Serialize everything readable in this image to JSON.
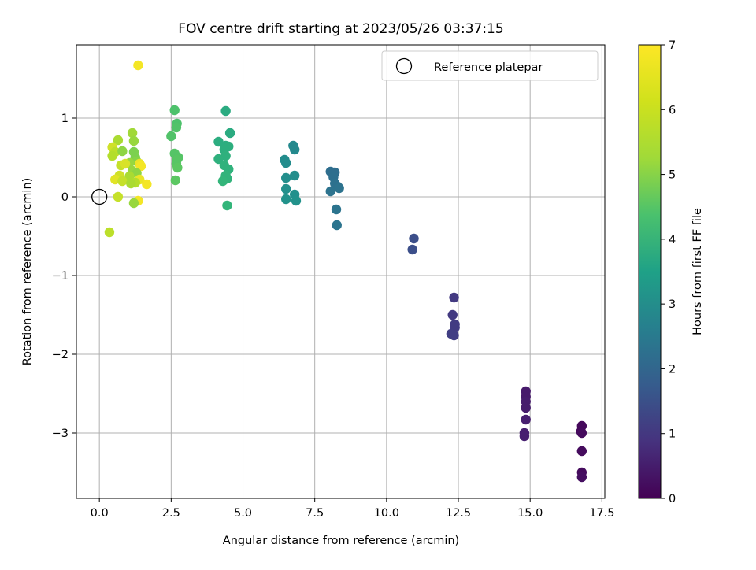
{
  "chart_data": {
    "type": "scatter",
    "title": "FOV centre drift starting at 2023/05/26 03:37:15",
    "xlabel": "Angular distance from reference (arcmin)",
    "ylabel": "Rotation from reference (arcmin)",
    "xlim": [
      -0.8,
      17.6
    ],
    "ylim": [
      -3.83,
      1.93
    ],
    "xticks": [
      0.0,
      2.5,
      5.0,
      7.5,
      10.0,
      12.5,
      15.0,
      17.5
    ],
    "xtick_labels": [
      "0.0",
      "2.5",
      "5.0",
      "7.5",
      "10.0",
      "12.5",
      "15.0",
      "17.5"
    ],
    "yticks": [
      -3,
      -2,
      -1,
      0,
      1
    ],
    "ytick_labels": [
      "−3",
      "−2",
      "−1",
      "0",
      "1"
    ],
    "grid": true,
    "legend": {
      "placement": "top-right",
      "entries": [
        "Reference platepar"
      ]
    },
    "reference_point": {
      "x": 0.0,
      "y": 0.0,
      "label": "Reference platepar"
    },
    "colorbar": {
      "label": "Hours from first FF file",
      "colormap": "viridis",
      "range": [
        0,
        7
      ],
      "ticks": [
        0,
        1,
        2,
        3,
        4,
        5,
        6,
        7
      ],
      "tick_labels": [
        "0",
        "1",
        "2",
        "3",
        "4",
        "5",
        "6",
        "7"
      ]
    },
    "points": [
      {
        "x": 16.8,
        "y": -2.91,
        "c": 0.15
      },
      {
        "x": 16.77,
        "y": -2.98,
        "c": 0.15
      },
      {
        "x": 16.8,
        "y": -3.0,
        "c": 0.2
      },
      {
        "x": 16.8,
        "y": -3.23,
        "c": 0.2
      },
      {
        "x": 16.8,
        "y": -3.5,
        "c": 0.2
      },
      {
        "x": 16.8,
        "y": -3.56,
        "c": 0.25
      },
      {
        "x": 14.85,
        "y": -2.47,
        "c": 0.5
      },
      {
        "x": 14.85,
        "y": -2.54,
        "c": 0.5
      },
      {
        "x": 14.85,
        "y": -2.6,
        "c": 0.55
      },
      {
        "x": 14.85,
        "y": -2.68,
        "c": 0.55
      },
      {
        "x": 14.85,
        "y": -2.83,
        "c": 0.6
      },
      {
        "x": 14.8,
        "y": -3.0,
        "c": 0.6
      },
      {
        "x": 14.8,
        "y": -3.04,
        "c": 0.6
      },
      {
        "x": 12.35,
        "y": -1.28,
        "c": 1.2
      },
      {
        "x": 12.3,
        "y": -1.5,
        "c": 1.2
      },
      {
        "x": 12.38,
        "y": -1.62,
        "c": 1.25
      },
      {
        "x": 12.38,
        "y": -1.66,
        "c": 1.25
      },
      {
        "x": 12.25,
        "y": -1.74,
        "c": 1.3
      },
      {
        "x": 12.35,
        "y": -1.76,
        "c": 1.3
      },
      {
        "x": 10.95,
        "y": -0.53,
        "c": 1.7
      },
      {
        "x": 10.9,
        "y": -0.67,
        "c": 1.7
      },
      {
        "x": 8.05,
        "y": 0.32,
        "c": 2.5
      },
      {
        "x": 8.2,
        "y": 0.31,
        "c": 2.5
      },
      {
        "x": 8.15,
        "y": 0.25,
        "c": 2.55
      },
      {
        "x": 8.2,
        "y": 0.17,
        "c": 2.6
      },
      {
        "x": 8.3,
        "y": 0.13,
        "c": 2.6
      },
      {
        "x": 8.35,
        "y": 0.11,
        "c": 2.65
      },
      {
        "x": 8.05,
        "y": 0.07,
        "c": 2.65
      },
      {
        "x": 8.25,
        "y": -0.16,
        "c": 2.7
      },
      {
        "x": 8.27,
        "y": -0.36,
        "c": 2.7
      },
      {
        "x": 6.75,
        "y": 0.65,
        "c": 3.3
      },
      {
        "x": 6.8,
        "y": 0.6,
        "c": 3.3
      },
      {
        "x": 6.45,
        "y": 0.47,
        "c": 3.4
      },
      {
        "x": 6.5,
        "y": 0.43,
        "c": 3.4
      },
      {
        "x": 6.8,
        "y": 0.27,
        "c": 3.45
      },
      {
        "x": 6.5,
        "y": 0.24,
        "c": 3.45
      },
      {
        "x": 6.5,
        "y": 0.1,
        "c": 3.5
      },
      {
        "x": 6.8,
        "y": 0.03,
        "c": 3.5
      },
      {
        "x": 6.5,
        "y": -0.03,
        "c": 3.55
      },
      {
        "x": 6.85,
        "y": -0.05,
        "c": 3.55
      },
      {
        "x": 4.4,
        "y": 1.09,
        "c": 4.3
      },
      {
        "x": 4.55,
        "y": 0.81,
        "c": 4.3
      },
      {
        "x": 4.15,
        "y": 0.7,
        "c": 4.35
      },
      {
        "x": 4.4,
        "y": 0.65,
        "c": 4.35
      },
      {
        "x": 4.5,
        "y": 0.64,
        "c": 4.4
      },
      {
        "x": 4.35,
        "y": 0.6,
        "c": 4.4
      },
      {
        "x": 4.4,
        "y": 0.52,
        "c": 4.45
      },
      {
        "x": 4.15,
        "y": 0.48,
        "c": 4.45
      },
      {
        "x": 4.35,
        "y": 0.4,
        "c": 4.5
      },
      {
        "x": 4.5,
        "y": 0.35,
        "c": 4.5
      },
      {
        "x": 4.4,
        "y": 0.27,
        "c": 4.55
      },
      {
        "x": 4.45,
        "y": 0.23,
        "c": 4.55
      },
      {
        "x": 4.3,
        "y": 0.2,
        "c": 4.6
      },
      {
        "x": 4.45,
        "y": -0.11,
        "c": 4.6
      },
      {
        "x": 2.62,
        "y": 1.1,
        "c": 5.0
      },
      {
        "x": 2.7,
        "y": 0.93,
        "c": 5.0
      },
      {
        "x": 2.68,
        "y": 0.88,
        "c": 5.05
      },
      {
        "x": 2.5,
        "y": 0.77,
        "c": 5.05
      },
      {
        "x": 2.62,
        "y": 0.55,
        "c": 5.1
      },
      {
        "x": 2.75,
        "y": 0.5,
        "c": 5.1
      },
      {
        "x": 2.7,
        "y": 0.47,
        "c": 5.15
      },
      {
        "x": 2.68,
        "y": 0.42,
        "c": 5.15
      },
      {
        "x": 2.72,
        "y": 0.37,
        "c": 5.2
      },
      {
        "x": 2.65,
        "y": 0.21,
        "c": 5.2
      },
      {
        "x": 1.35,
        "y": 1.67,
        "c": 6.9
      },
      {
        "x": 1.15,
        "y": 0.81,
        "c": 6.0
      },
      {
        "x": 0.65,
        "y": 0.72,
        "c": 6.1
      },
      {
        "x": 1.2,
        "y": 0.71,
        "c": 5.9
      },
      {
        "x": 0.45,
        "y": 0.63,
        "c": 6.5
      },
      {
        "x": 0.55,
        "y": 0.57,
        "c": 6.3
      },
      {
        "x": 0.8,
        "y": 0.58,
        "c": 5.8
      },
      {
        "x": 1.2,
        "y": 0.57,
        "c": 5.6
      },
      {
        "x": 1.25,
        "y": 0.5,
        "c": 5.6
      },
      {
        "x": 0.45,
        "y": 0.52,
        "c": 6.2
      },
      {
        "x": 1.3,
        "y": 0.45,
        "c": 5.7
      },
      {
        "x": 1.05,
        "y": 0.43,
        "c": 5.9
      },
      {
        "x": 1.4,
        "y": 0.42,
        "c": 6.8
      },
      {
        "x": 1.45,
        "y": 0.39,
        "c": 6.9
      },
      {
        "x": 0.75,
        "y": 0.4,
        "c": 6.4
      },
      {
        "x": 0.9,
        "y": 0.42,
        "c": 6.6
      },
      {
        "x": 1.15,
        "y": 0.33,
        "c": 5.9
      },
      {
        "x": 0.7,
        "y": 0.27,
        "c": 6.5
      },
      {
        "x": 1.3,
        "y": 0.3,
        "c": 5.8
      },
      {
        "x": 1.05,
        "y": 0.26,
        "c": 6.1
      },
      {
        "x": 0.55,
        "y": 0.22,
        "c": 6.7
      },
      {
        "x": 1.4,
        "y": 0.22,
        "c": 6.8
      },
      {
        "x": 0.8,
        "y": 0.2,
        "c": 6.4
      },
      {
        "x": 1.25,
        "y": 0.18,
        "c": 6.2
      },
      {
        "x": 1.1,
        "y": 0.17,
        "c": 6.1
      },
      {
        "x": 1.65,
        "y": 0.16,
        "c": 6.9
      },
      {
        "x": 0.65,
        "y": 0.0,
        "c": 6.4
      },
      {
        "x": 1.35,
        "y": -0.05,
        "c": 6.9
      },
      {
        "x": 1.2,
        "y": -0.08,
        "c": 5.9
      },
      {
        "x": 0.35,
        "y": -0.45,
        "c": 6.3
      }
    ]
  }
}
